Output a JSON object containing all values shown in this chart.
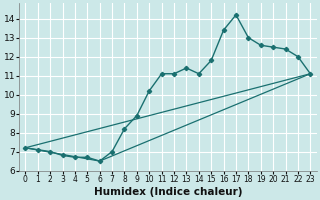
{
  "xlabel": "Humidex (Indice chaleur)",
  "bg_color": "#cce8e8",
  "grid_color": "#ffffff",
  "line_color": "#1a7070",
  "xlim": [
    -0.5,
    23.5
  ],
  "ylim": [
    6.0,
    14.8
  ],
  "xticks": [
    0,
    1,
    2,
    3,
    4,
    5,
    6,
    7,
    8,
    9,
    10,
    11,
    12,
    13,
    14,
    15,
    16,
    17,
    18,
    19,
    20,
    21,
    22,
    23
  ],
  "yticks": [
    6,
    7,
    8,
    9,
    10,
    11,
    12,
    13,
    14
  ],
  "line1_x": [
    0,
    1,
    2,
    3,
    4,
    5,
    6,
    7,
    8,
    9,
    10,
    11,
    12,
    13,
    14,
    15,
    16,
    17,
    18,
    19,
    20,
    21,
    22,
    23
  ],
  "line1_y": [
    7.2,
    7.1,
    7.0,
    6.8,
    6.7,
    6.7,
    6.5,
    7.0,
    8.2,
    8.9,
    10.2,
    11.1,
    11.1,
    11.4,
    11.1,
    11.8,
    13.4,
    14.2,
    13.0,
    12.6,
    12.5,
    12.4,
    12.0,
    11.1
  ],
  "line2_x": [
    0,
    6,
    23
  ],
  "line2_y": [
    7.2,
    6.5,
    11.1
  ],
  "line3_x": [
    0,
    23
  ],
  "line3_y": [
    7.2,
    11.1
  ],
  "xlabel_fontsize": 7.5,
  "tick_fontsize_x": 5.5,
  "tick_fontsize_y": 6.5
}
